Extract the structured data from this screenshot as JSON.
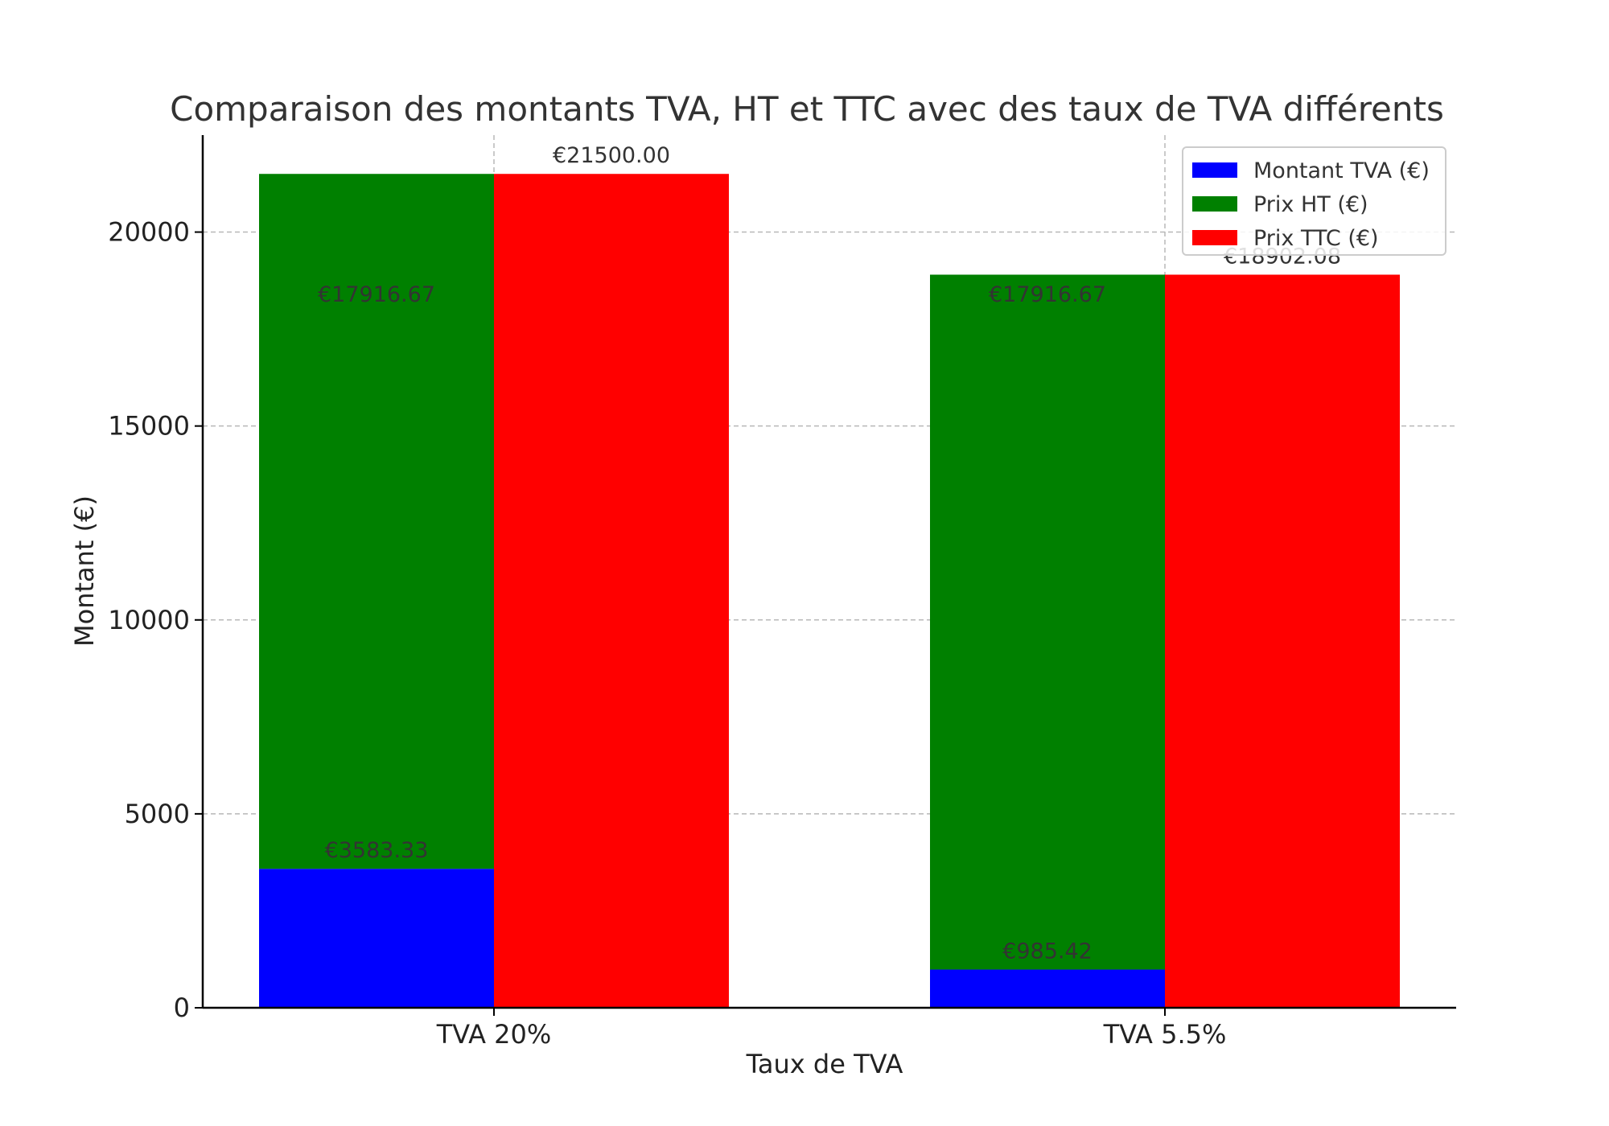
{
  "chart_data": {
    "type": "bar",
    "title": "Comparaison des montants TVA, HT et TTC avec des taux de TVA différents",
    "xlabel": "Taux de TVA",
    "ylabel": "Montant (€)",
    "categories": [
      "TVA 20%",
      "TVA 5.5%"
    ],
    "ylim": [
      0,
      22500
    ],
    "yticks": [
      0,
      5000,
      10000,
      15000,
      20000
    ],
    "grid": true,
    "legend_position": "top-right",
    "series": [
      {
        "name": "Montant TVA (€)",
        "color": "#0000ff",
        "values": [
          3583.33,
          985.42
        ],
        "labels": [
          "€3583.33",
          "€985.42"
        ],
        "stack": "left",
        "position": "bottom"
      },
      {
        "name": "Prix HT (€)",
        "color": "#008000",
        "values": [
          17916.67,
          17916.67
        ],
        "labels": [
          "€17916.67",
          "€17916.67"
        ],
        "stack": "left",
        "position": "top"
      },
      {
        "name": "Prix TTC (€)",
        "color": "#ff0000",
        "values": [
          21500.0,
          18902.08
        ],
        "labels": [
          "€21500.00",
          "€18902.08"
        ],
        "stack": "right",
        "position": "single"
      }
    ]
  }
}
